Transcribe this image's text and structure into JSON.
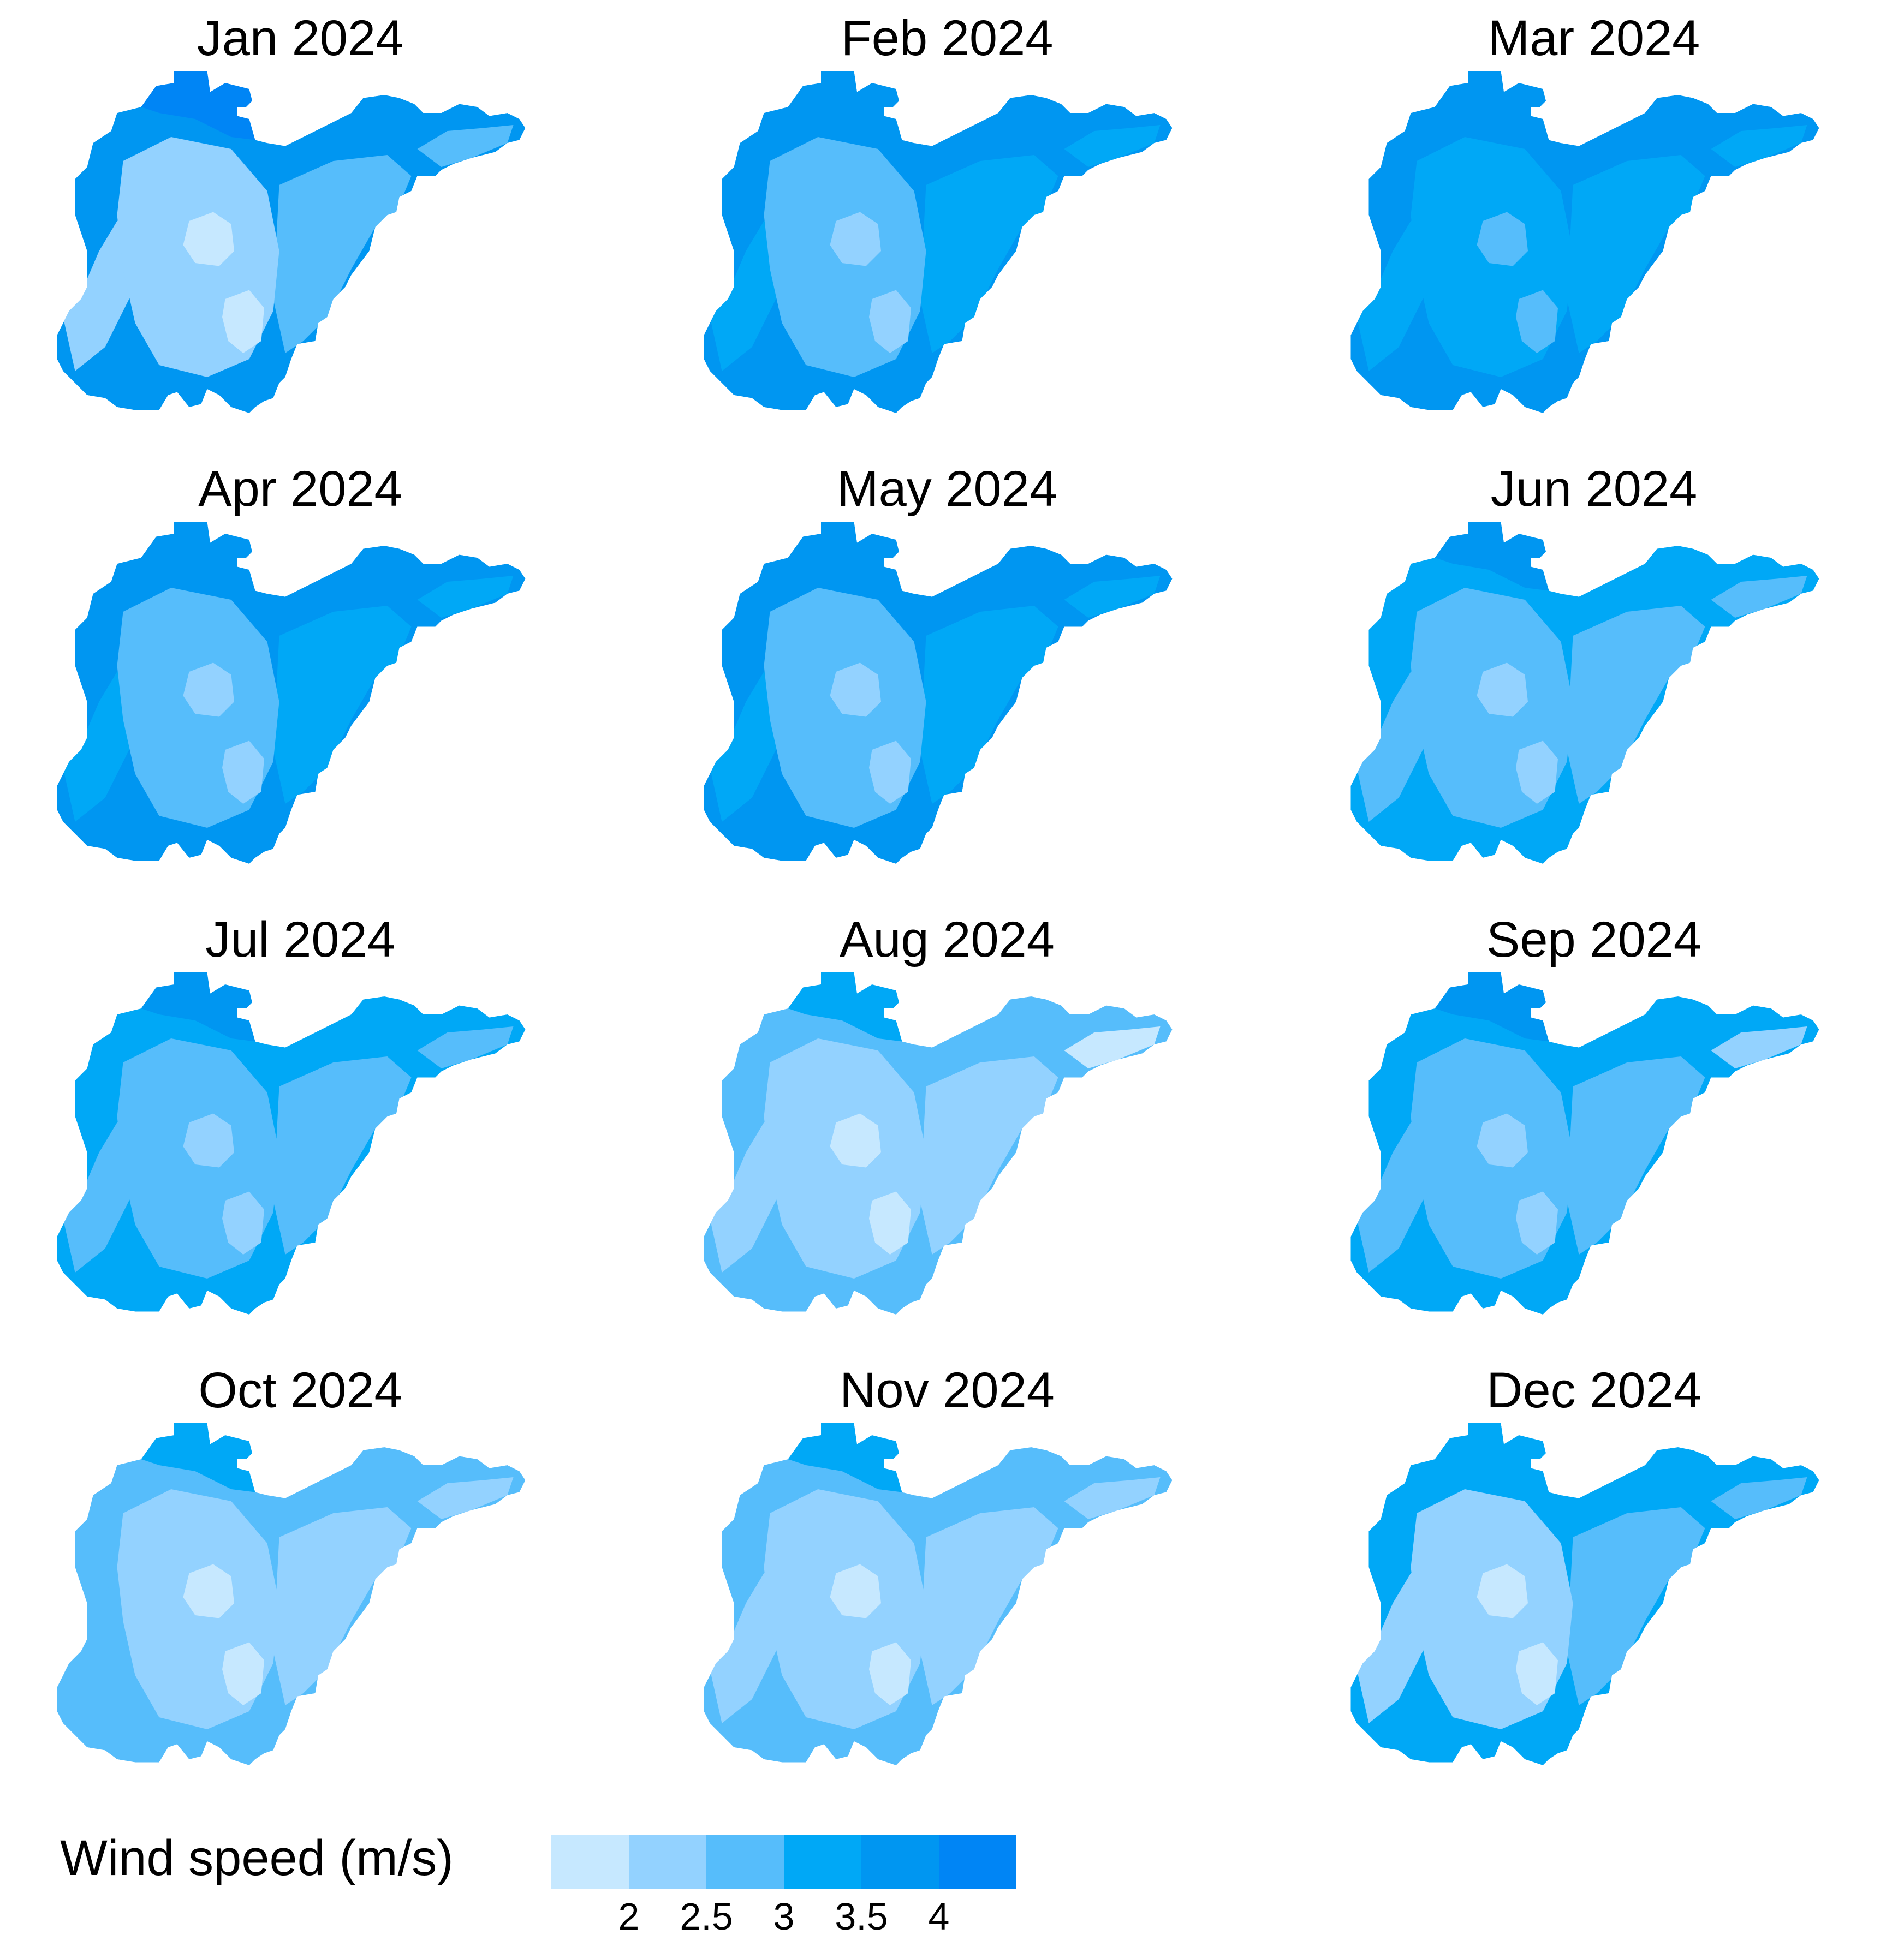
{
  "figure": {
    "panels": [
      {
        "title": "Jan 2024",
        "levels": {
          "outer": 4,
          "north": 5,
          "body": 1,
          "west": 1,
          "east": 2,
          "peninsula": 2,
          "center": 0,
          "south": 0
        }
      },
      {
        "title": "Feb 2024",
        "levels": {
          "outer": 4,
          "north": 4,
          "body": 2,
          "west": 3,
          "east": 3,
          "peninsula": 3,
          "center": 1,
          "south": 1
        }
      },
      {
        "title": "Mar 2024",
        "levels": {
          "outer": 4,
          "north": 4,
          "body": 3,
          "west": 3,
          "east": 3,
          "peninsula": 3,
          "center": 2,
          "south": 2
        }
      },
      {
        "title": "Apr 2024",
        "levels": {
          "outer": 4,
          "north": 4,
          "body": 2,
          "west": 3,
          "east": 3,
          "peninsula": 3,
          "center": 1,
          "south": 1
        }
      },
      {
        "title": "May 2024",
        "levels": {
          "outer": 4,
          "north": 4,
          "body": 2,
          "west": 3,
          "east": 3,
          "peninsula": 3,
          "center": 1,
          "south": 1
        }
      },
      {
        "title": "Jun 2024",
        "levels": {
          "outer": 3,
          "north": 4,
          "body": 2,
          "west": 2,
          "east": 2,
          "peninsula": 2,
          "center": 1,
          "south": 1
        }
      },
      {
        "title": "Jul 2024",
        "levels": {
          "outer": 3,
          "north": 4,
          "body": 2,
          "west": 2,
          "east": 2,
          "peninsula": 2,
          "center": 1,
          "south": 1
        }
      },
      {
        "title": "Aug 2024",
        "levels": {
          "outer": 2,
          "north": 3,
          "body": 1,
          "west": 1,
          "east": 1,
          "peninsula": 0,
          "center": 0,
          "south": 0
        }
      },
      {
        "title": "Sep 2024",
        "levels": {
          "outer": 3,
          "north": 4,
          "body": 2,
          "west": 2,
          "east": 2,
          "peninsula": 1,
          "center": 1,
          "south": 1
        }
      },
      {
        "title": "Oct 2024",
        "levels": {
          "outer": 2,
          "north": 3,
          "body": 1,
          "west": 2,
          "east": 1,
          "peninsula": 1,
          "center": 0,
          "south": 0
        }
      },
      {
        "title": "Nov 2024",
        "levels": {
          "outer": 2,
          "north": 3,
          "body": 1,
          "west": 1,
          "east": 1,
          "peninsula": 1,
          "center": 0,
          "south": 0
        }
      },
      {
        "title": "Dec 2024",
        "levels": {
          "outer": 3,
          "north": 3,
          "body": 1,
          "west": 1,
          "east": 2,
          "peninsula": 2,
          "center": 0,
          "south": 0
        }
      }
    ]
  },
  "legend": {
    "title": "Wind speed (m/s)",
    "colors": [
      "#c6e8ff",
      "#93d2ff",
      "#56bdfb",
      "#00a8f6",
      "#0096f1",
      "#0085f5"
    ],
    "ticks": [
      "2",
      "2.5",
      "3",
      "3.5",
      "4"
    ],
    "tick_values": [
      2,
      2.5,
      3,
      3.5,
      4
    ],
    "range": [
      1.5,
      4.5
    ]
  }
}
